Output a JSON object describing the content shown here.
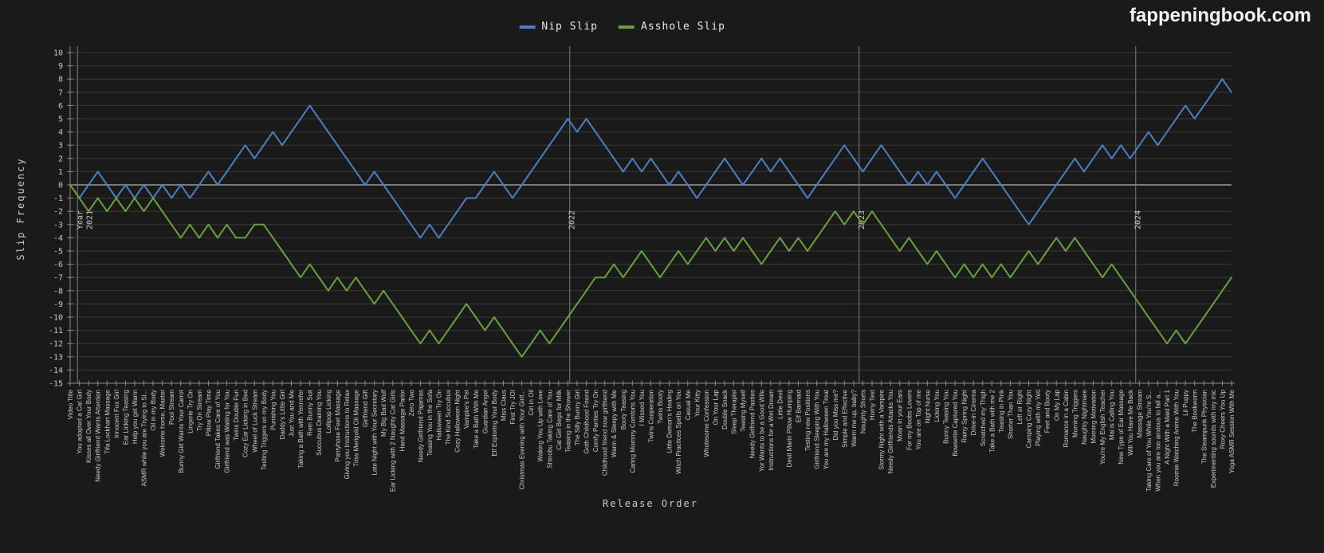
{
  "header": {
    "logo_text": "fappeningbook.com"
  },
  "legend": {
    "items": [
      {
        "label": "Nip Slip",
        "color": "#4d7ec0"
      },
      {
        "label": "Asshole Slip",
        "color": "#68a03e"
      }
    ]
  },
  "colors": {
    "background": "#1a1a1a",
    "grid": "#383838",
    "zero_line": "#9a9a9a",
    "year_line": "#7d7d7d",
    "axis": "#8a8a8a",
    "tick_text": "#c8c8c8",
    "label_text": "#cccccc",
    "logo_text": "#f2f2f2"
  },
  "chart_data": {
    "type": "line",
    "title": "",
    "xlabel": "Release Order",
    "ylabel": "Slip Frequency",
    "ylim": [
      -15,
      10
    ],
    "ytick_step": 1,
    "grid": true,
    "legend_position": "top-center",
    "year_markers": [
      {
        "prefix": "Year",
        "year": "2021",
        "index": 0.8
      },
      {
        "prefix": "",
        "year": "2022",
        "index": 54.2
      },
      {
        "prefix": "",
        "year": "2023",
        "index": 85.6
      },
      {
        "prefix": "",
        "year": "2024",
        "index": 115.6
      }
    ],
    "categories": [
      "Video Title",
      "You adopted a Cat Girl",
      "Kisses all Over Your Body",
      "Needy Girlfriend Wants Attention",
      "Tifa Lockhart Massage",
      "Innocent Fox Girl",
      "Ear Licking Teasing",
      "Help you get Warm",
      "ASMR while you are Trying to Sl...",
      "Oil in my Body",
      "Welcome home, Master",
      "Pool Stream",
      "Bunny Girl Wants Your Carrot",
      "Lingerie Try On",
      "Try On Stream",
      "Pillow Play Time",
      "Girlfriend Takes Care of You",
      "Girlfriend was Waiting for You",
      "Twins Double Fun",
      "Cozy Ear Licking in Bed",
      "Wheel of Luck Stream",
      "Testing Triggers on my Body",
      "Punishing You",
      "Daddy's Little Girl",
      "Just You and Me",
      "Taking a Bath with Yennefer",
      "Rem Bunny Suit",
      "Succubus Draining You",
      "Lollipop Licking",
      "Pantyhose Feet Massage",
      "Giving you Instructions to Relax",
      "Triss Merigold Oil Massage",
      "Girlfriend Gift",
      "Late Night with Your Secretary",
      "My Big Bad Wolf",
      "Ear Licking with 2 Naughty Cat Girls",
      "Hand Massage Parlor",
      "Zero Two",
      "Needy Girlfriend Pajamas",
      "Teasing You in the Sofa",
      "Halloween Try On",
      "The Kind Succubus",
      "Cozy Halloween Night",
      "Vampire's Pet",
      "Take a Bath With Me",
      "Guardian Angel",
      "Elf Exploring Your Body",
      "Miss Claus",
      "First Try JOI",
      "Christmas Evening with Your Girlf...",
      "Ciri in Oil",
      "Waking You Up with Love",
      "Shinobu Taking Care of You",
      "Cat Girl Begs for Milk",
      "Teasing in the Shower",
      "The Silly Bunny Girl",
      "Goth Childhood Friend",
      "Comfy Panties Try On",
      "Childhood friend now girlfriend",
      "Warm & Sleepy with Me",
      "Booty Teasing",
      "Caring Mommy Comforts You",
      "I Missed You",
      "Twins Cooperation",
      "Twins Booty",
      "Little Demon's Healing",
      "Witch Practices Spells on You",
      "Casual Me",
      "Your Kitty",
      "Wholesome Confession",
      "On Your Lap",
      "Double Snack",
      "Sleep Therapist",
      "Teasing Myself",
      "Needy Girlfriend Pasties",
      "Yor Wants to be a Good Wife",
      "Instructions for a Wet Dream",
      "Little Devil",
      "Devil Marin Pillow Humping",
      "Elf Barmaid",
      "Testing new Positions",
      "Girlfriend Sleeping With You",
      "You are my Halloween Treat",
      "Did you Miss me?",
      "Simple and Effective",
      "Warm me up, baby?",
      "Naughty Shorts",
      "Horny Test",
      "Stormy Night with a Vampire",
      "Needy Girlfriends Attacks You",
      "Moan in your Ears",
      "For my Boobs Lovers",
      "You are on Top of me",
      "Night Nurse",
      "Licking You",
      "Bunny Teasing You",
      "Bowsette Captured You",
      "Rainy Spring Night",
      "Drive-in Cinema",
      "Scratched my Thigh",
      "Take a Bath with me 2",
      "Teasing in Pink",
      "Shorter Than You",
      "Left or Right",
      "Camping Cozy Night",
      "Playing with my Yeti",
      "Feet and Booty",
      "On My Lap",
      "Romance in a Cabin",
      "Morning Triggers",
      "Naughty Nightmare",
      "Morning Motivation",
      "You're My English Teacher",
      "Mai is Calling You",
      "New Type of Ear Massage",
      "Will You Have Me Back",
      "Massage Stream",
      "Taking Care of You While You're S...",
      "When you are too anxious to fall a...",
      "A Night With a Maid Part 1",
      "Roomie Watching Anime With You",
      "Lil Puppy",
      "The Bookworm",
      "The Steampunk Physician",
      "Experimenting sounds with my mic",
      "Roxy Cheers You Up",
      "Yoga ASMR Session With Me"
    ],
    "series": [
      {
        "name": "Nip Slip",
        "color": "#4d7ec0",
        "values": [
          0,
          -1,
          0,
          1,
          0,
          -1,
          0,
          -1,
          0,
          -1,
          0,
          -1,
          0,
          -1,
          0,
          1,
          0,
          1,
          2,
          3,
          2,
          3,
          4,
          3,
          4,
          5,
          6,
          5,
          4,
          3,
          2,
          1,
          0,
          1,
          0,
          -1,
          -2,
          -3,
          -4,
          -3,
          -4,
          -3,
          -2,
          -1,
          -1,
          0,
          1,
          0,
          -1,
          0,
          1,
          2,
          3,
          4,
          5,
          4,
          5,
          4,
          3,
          2,
          1,
          2,
          1,
          2,
          1,
          0,
          1,
          0,
          -1,
          0,
          1,
          2,
          1,
          0,
          1,
          2,
          1,
          2,
          1,
          0,
          -1,
          0,
          1,
          2,
          3,
          2,
          1,
          2,
          3,
          2,
          1,
          0,
          1,
          0,
          1,
          0,
          -1,
          0,
          1,
          2,
          1,
          0,
          -1,
          -2,
          -3,
          -2,
          -1,
          0,
          1,
          2,
          1,
          2,
          3,
          2,
          3,
          2,
          3,
          4,
          3,
          4,
          5,
          6,
          5,
          6,
          7,
          8,
          7
        ]
      },
      {
        "name": "Asshole Slip",
        "color": "#68a03e",
        "values": [
          0,
          -1,
          -2,
          -1,
          -2,
          -1,
          -2,
          -1,
          -2,
          -1,
          -2,
          -3,
          -4,
          -3,
          -4,
          -3,
          -4,
          -3,
          -4,
          -4,
          -3,
          -3,
          -4,
          -5,
          -6,
          -7,
          -6,
          -7,
          -8,
          -7,
          -8,
          -7,
          -8,
          -9,
          -8,
          -9,
          -10,
          -11,
          -12,
          -11,
          -12,
          -11,
          -10,
          -9,
          -10,
          -11,
          -10,
          -11,
          -12,
          -13,
          -12,
          -11,
          -12,
          -11,
          -10,
          -9,
          -8,
          -7,
          -7,
          -6,
          -7,
          -6,
          -5,
          -6,
          -7,
          -6,
          -5,
          -6,
          -5,
          -4,
          -5,
          -4,
          -5,
          -4,
          -5,
          -6,
          -5,
          -4,
          -5,
          -4,
          -5,
          -4,
          -3,
          -2,
          -3,
          -2,
          -3,
          -2,
          -3,
          -4,
          -5,
          -4,
          -5,
          -6,
          -5,
          -6,
          -7,
          -6,
          -7,
          -6,
          -7,
          -6,
          -7,
          -6,
          -5,
          -6,
          -5,
          -4,
          -5,
          -4,
          -5,
          -6,
          -7,
          -6,
          -7,
          -8,
          -9,
          -10,
          -11,
          -12,
          -11,
          -12,
          -11,
          -10,
          -9,
          -8,
          -7
        ]
      }
    ]
  }
}
